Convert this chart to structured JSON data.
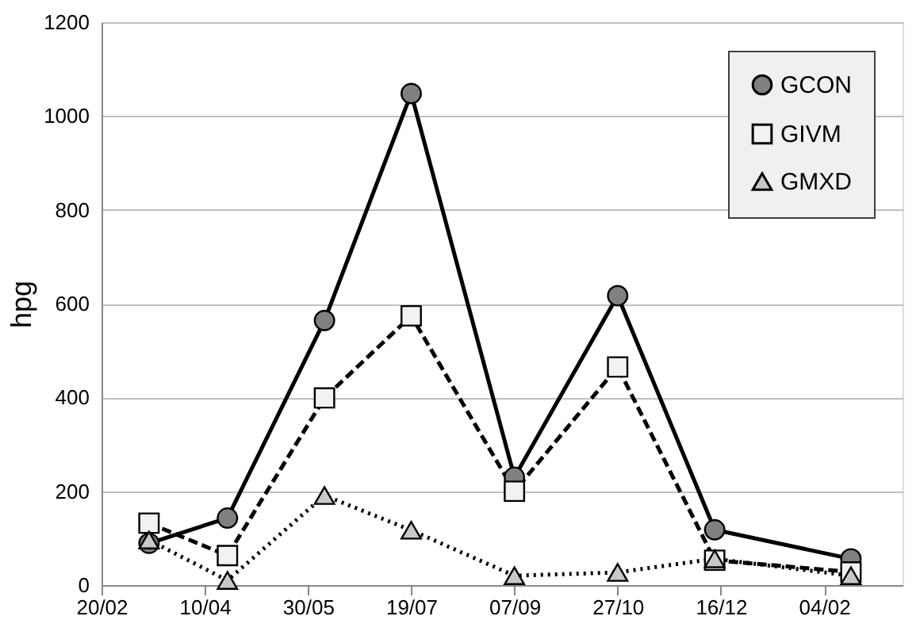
{
  "chart_data": {
    "type": "line",
    "ylabel": "hpg",
    "xlim": [
      "2012-02-20",
      "2013-03-14"
    ],
    "xticks": [
      {
        "value": "2012-02-20",
        "label": "20/02"
      },
      {
        "value": "2012-04-10",
        "label": "10/04"
      },
      {
        "value": "2012-05-30",
        "label": "30/05"
      },
      {
        "value": "2012-07-19",
        "label": "19/07"
      },
      {
        "value": "2012-09-07",
        "label": "07/09"
      },
      {
        "value": "2012-10-27",
        "label": "27/10"
      },
      {
        "value": "2012-12-16",
        "label": "16/12"
      },
      {
        "value": "2013-02-04",
        "label": "04/02"
      }
    ],
    "ylim": [
      0,
      1200
    ],
    "yticks": [
      0,
      200,
      400,
      600,
      800,
      1000,
      1200
    ],
    "x": [
      "2012-03-14",
      "2012-04-21",
      "2012-06-07",
      "2012-07-19",
      "2012-09-07",
      "2012-10-27",
      "2012-12-13",
      "2013-02-17"
    ],
    "series": [
      {
        "name": "GCON",
        "color": "#808080",
        "marker": "circle",
        "line_style": "solid",
        "values": [
          89,
          143,
          564,
          1048,
          230,
          617,
          118,
          56
        ]
      },
      {
        "name": "GIVM",
        "color": "#f2f2f2",
        "marker": "square",
        "line_style": "dashed",
        "values": [
          132,
          63,
          399,
          574,
          200,
          465,
          53,
          28
        ]
      },
      {
        "name": "GMXD",
        "color": "#c8c8c8",
        "marker": "triangle",
        "line_style": "dotted",
        "values": [
          96,
          10,
          191,
          117,
          20,
          27,
          56,
          20
        ]
      }
    ],
    "grid": "y",
    "legend": "top right"
  }
}
